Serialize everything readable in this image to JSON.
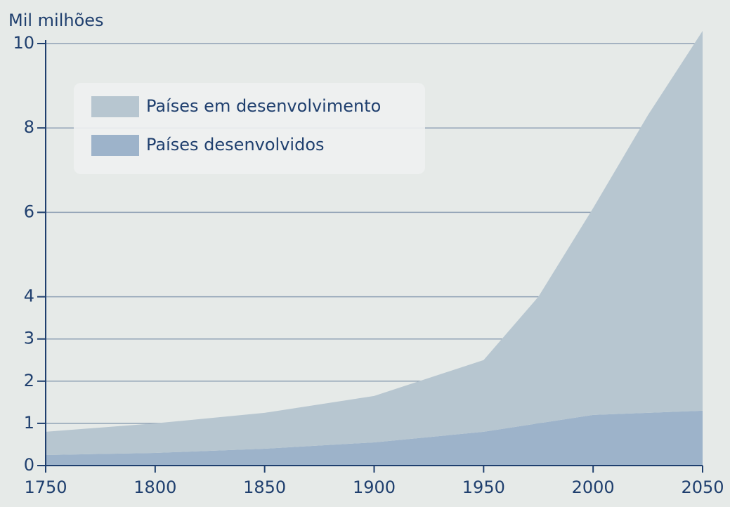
{
  "chart_data": {
    "type": "stacked_area",
    "y_label": "Mil milhões",
    "x": [
      1750,
      1800,
      1850,
      1900,
      1950,
      1975,
      2000,
      2025,
      2050
    ],
    "series": [
      {
        "name": "Países desenvolvidos",
        "color": "#9db3ca",
        "values": [
          0.25,
          0.3,
          0.4,
          0.55,
          0.8,
          1.0,
          1.2,
          1.25,
          1.3
        ]
      },
      {
        "name": "Países em desenvolvimento",
        "color": "#b7c6d0",
        "values": [
          0.55,
          0.7,
          0.85,
          1.1,
          1.7,
          3.0,
          4.9,
          7.05,
          9.0
        ]
      }
    ],
    "xlim": [
      1750,
      2050
    ],
    "xticks": [
      1750,
      1800,
      1850,
      1900,
      1950,
      2000,
      2050
    ],
    "ylim": [
      0,
      10
    ],
    "yticks": [
      0,
      1,
      2,
      3,
      4,
      6,
      8,
      10
    ],
    "grid": true,
    "legend": "upper left"
  }
}
